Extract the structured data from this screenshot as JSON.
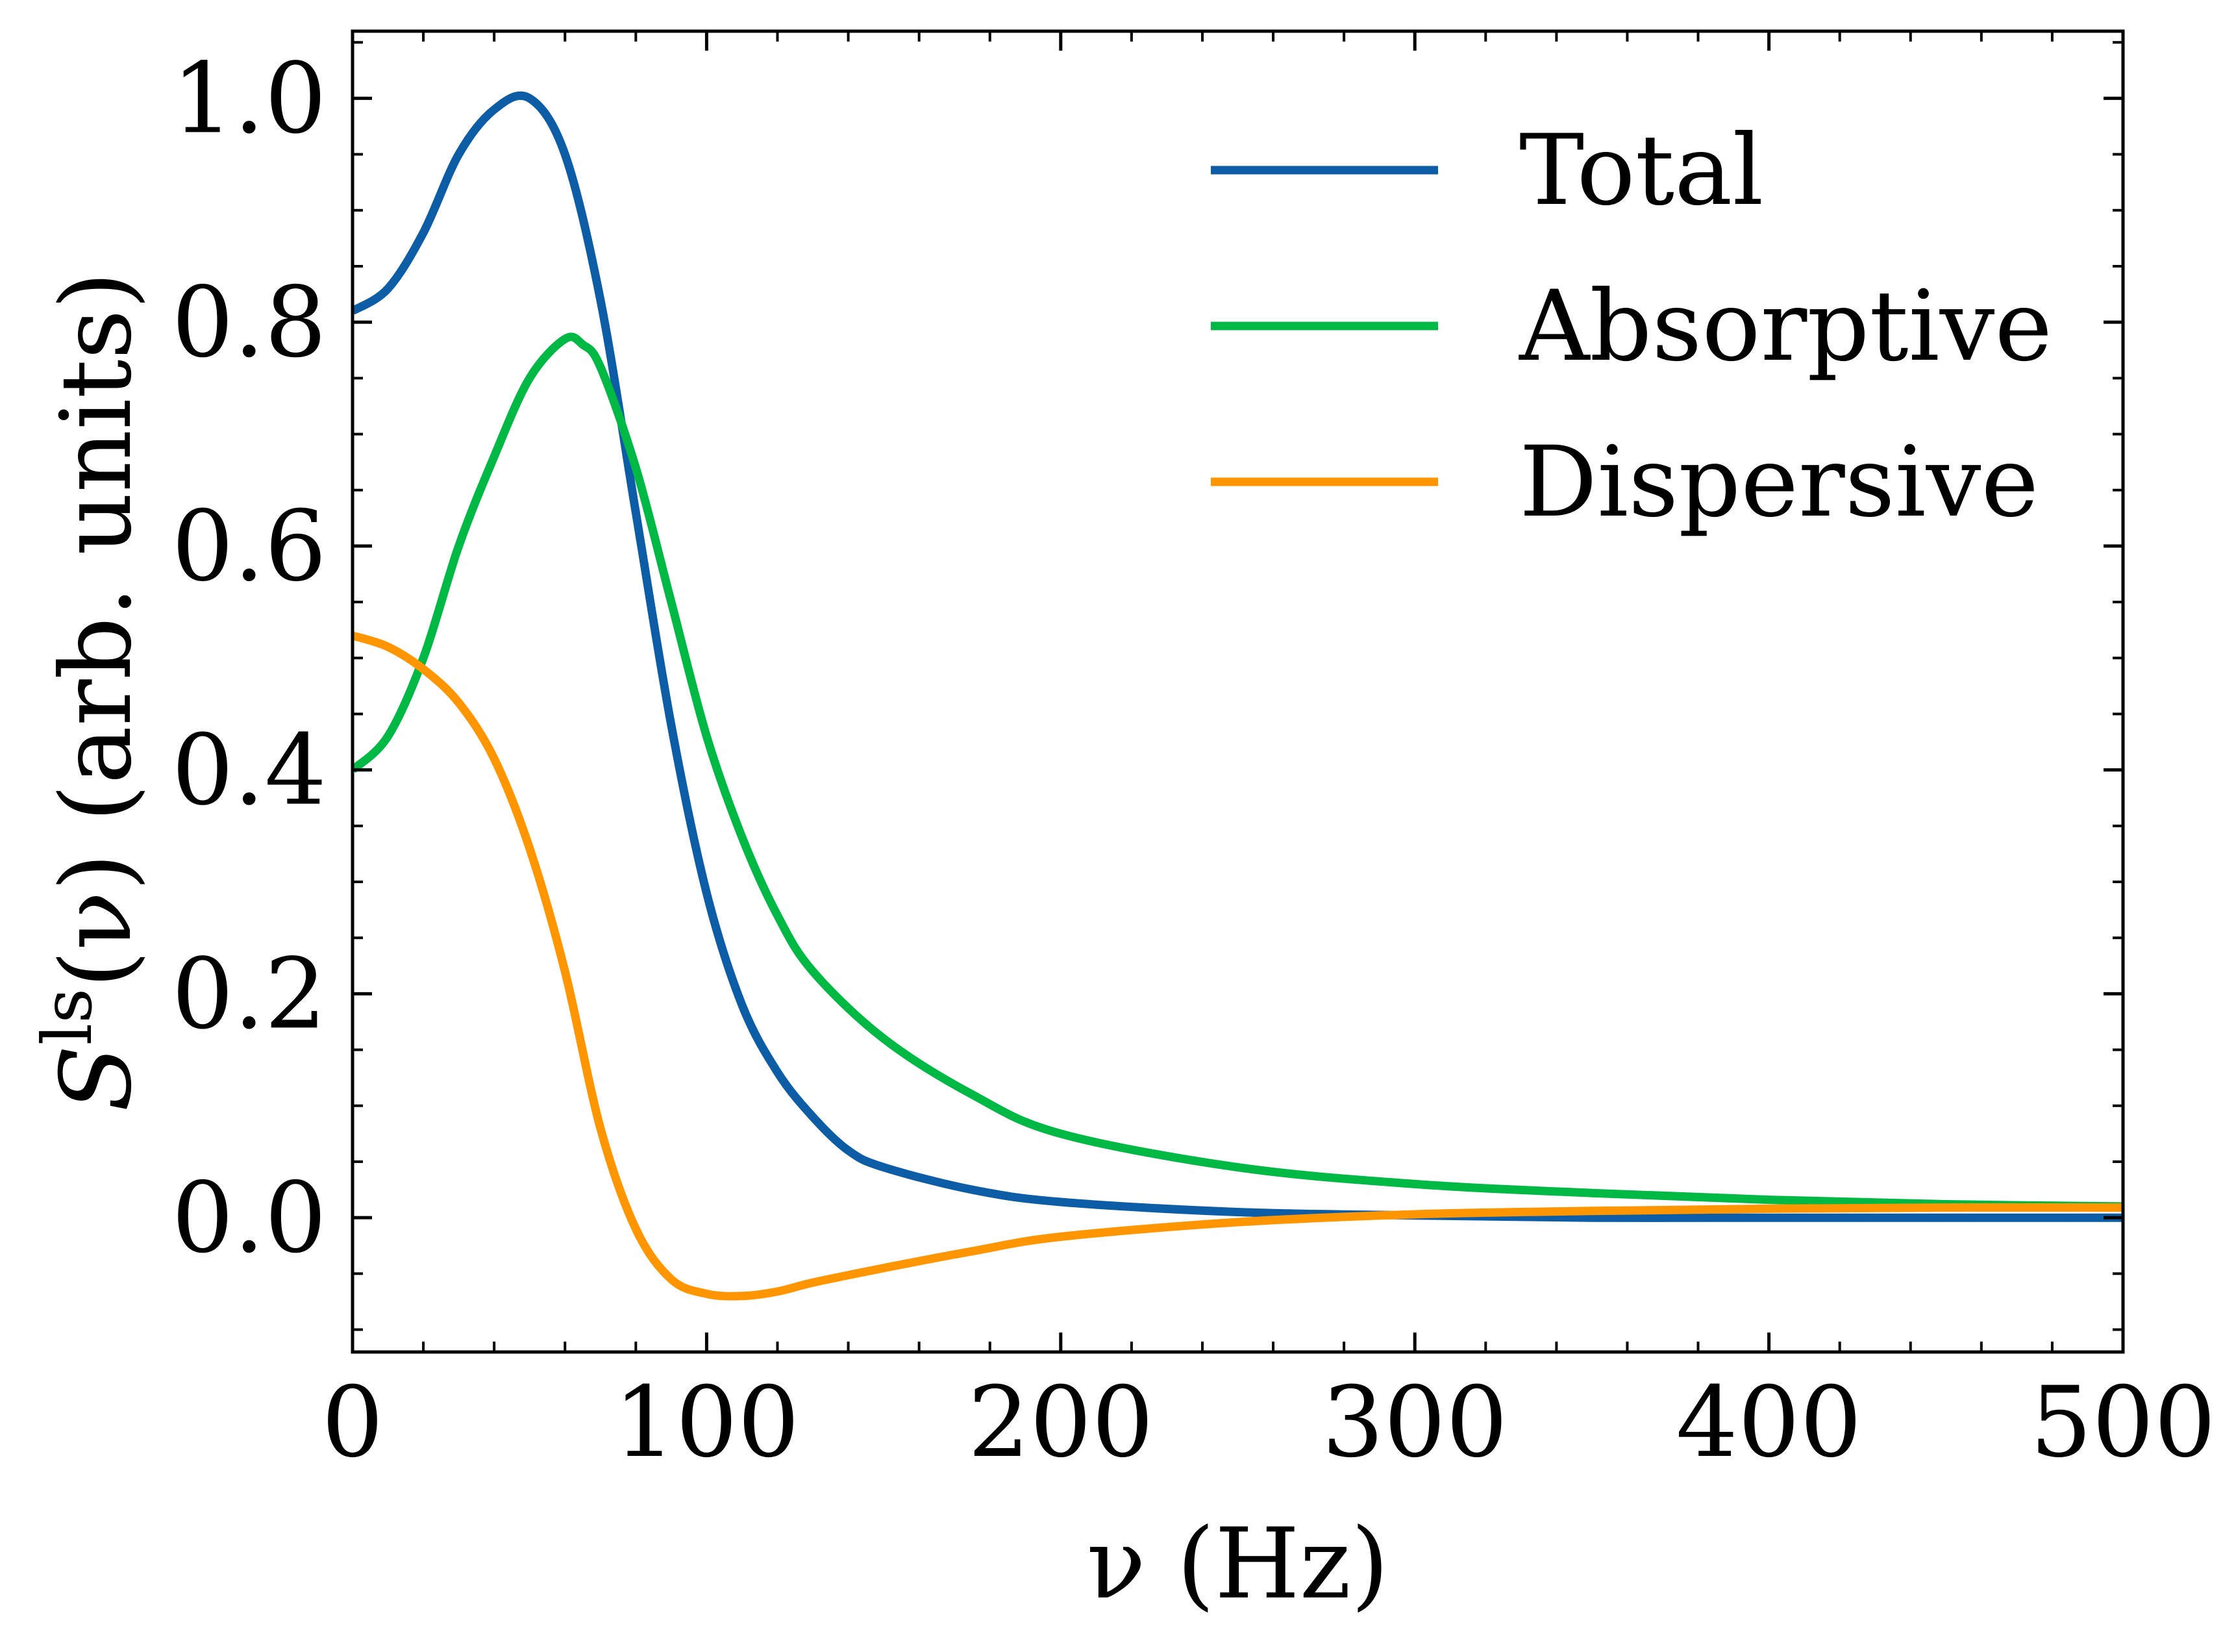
{
  "chart_data": {
    "type": "line",
    "xlabel": "ν (Hz)",
    "ylabel": "S^ls(ν) (arb. units)",
    "ylabel_parts": {
      "symbol": "S",
      "superscript": "ls",
      "argument": "(ν)",
      "units": "(arb. units)"
    },
    "xlim": [
      0,
      500
    ],
    "ylim": [
      -0.12,
      1.06
    ],
    "x_ticks": [
      0,
      100,
      200,
      300,
      400,
      500
    ],
    "x_tick_labels": [
      "0",
      "100",
      "200",
      "300",
      "400",
      "500"
    ],
    "y_ticks": [
      0.0,
      0.2,
      0.4,
      0.6,
      0.8,
      1.0
    ],
    "y_tick_labels": [
      "0.0",
      "0.2",
      "0.4",
      "0.6",
      "0.8",
      "1.0"
    ],
    "grid": false,
    "legend_position": "top-right",
    "series": [
      {
        "name": "Total",
        "color": "#0C5DA5",
        "x": [
          0,
          10,
          20,
          30,
          40,
          50,
          60,
          70,
          80,
          90,
          100,
          110,
          120,
          130,
          140,
          150,
          175,
          200,
          250,
          300,
          350,
          400,
          450,
          500
        ],
        "y": [
          0.81,
          0.83,
          0.88,
          0.95,
          0.99,
          1.0,
          0.95,
          0.82,
          0.63,
          0.44,
          0.29,
          0.19,
          0.13,
          0.09,
          0.06,
          0.045,
          0.025,
          0.014,
          0.005,
          0.002,
          0.0,
          0.0,
          0.0,
          0.0
        ]
      },
      {
        "name": "Absorptive",
        "color": "#00B945",
        "x": [
          0,
          10,
          20,
          30,
          40,
          50,
          60,
          65,
          70,
          80,
          90,
          100,
          110,
          120,
          130,
          150,
          175,
          200,
          250,
          300,
          350,
          400,
          450,
          500
        ],
        "y": [
          0.4,
          0.43,
          0.5,
          0.6,
          0.68,
          0.75,
          0.785,
          0.78,
          0.76,
          0.67,
          0.55,
          0.43,
          0.34,
          0.27,
          0.22,
          0.16,
          0.11,
          0.075,
          0.045,
          0.03,
          0.022,
          0.016,
          0.012,
          0.01
        ]
      },
      {
        "name": "Dispersive",
        "color": "#FF9500",
        "x": [
          0,
          10,
          20,
          30,
          40,
          50,
          60,
          70,
          80,
          90,
          100,
          110,
          120,
          130,
          150,
          175,
          200,
          250,
          300,
          350,
          400,
          450,
          500
        ],
        "y": [
          0.52,
          0.51,
          0.49,
          0.46,
          0.41,
          0.33,
          0.22,
          0.08,
          -0.01,
          -0.055,
          -0.068,
          -0.07,
          -0.066,
          -0.058,
          -0.045,
          -0.03,
          -0.017,
          -0.004,
          0.003,
          0.006,
          0.008,
          0.009,
          0.009
        ]
      }
    ]
  }
}
